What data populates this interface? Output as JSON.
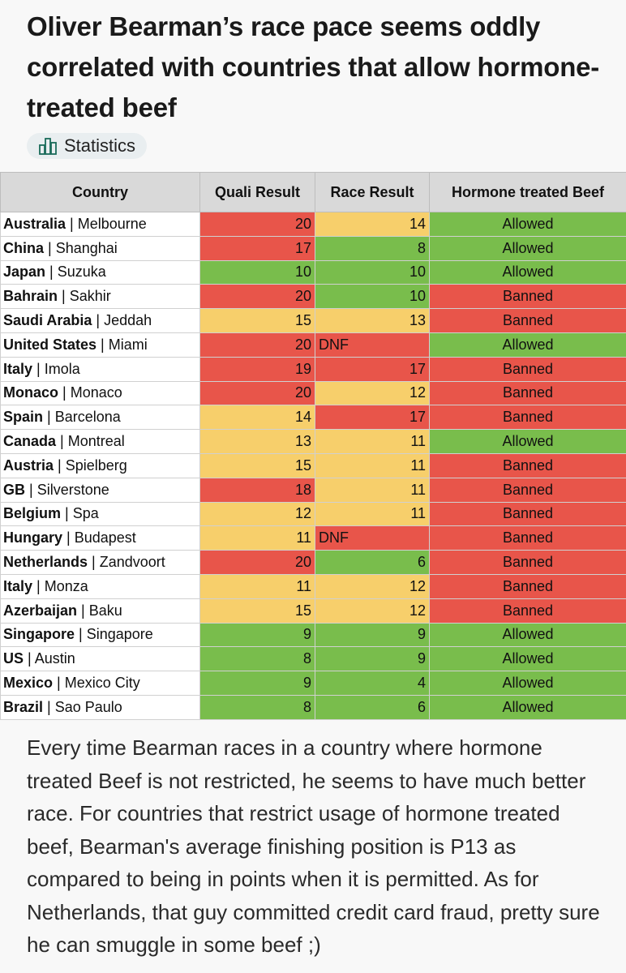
{
  "post": {
    "title": "Oliver Bearman’s race pace seems oddly correlated with countries that allow hormone-treated beef",
    "tag": {
      "label": "Statistics",
      "icon": "bar-chart-icon"
    },
    "body": "Every time Bearman races in a country where hormone treated Beef is not restricted, he seems to have much better race. For countries that restrict usage of hormone treated beef, Bearman's average finishing position is P13 as compared to being in points when it is permitted. As for Netherlands, that guy committed credit card fraud, pretty sure he can smuggle in some beef ;)"
  },
  "colors": {
    "red": "#e8554a",
    "yellow": "#f7cf6b",
    "green": "#79bd4c"
  },
  "table": {
    "headers": [
      "Country",
      "Quali Result",
      "Race Result",
      "Hormone treated Beef"
    ],
    "rows": [
      {
        "country": "Australia",
        "venue": "Melbourne",
        "quali": "20",
        "quali_color": "red",
        "race": "14",
        "race_color": "yellow",
        "beef": "Allowed",
        "beef_color": "green"
      },
      {
        "country": "China",
        "venue": "Shanghai",
        "quali": "17",
        "quali_color": "red",
        "race": "8",
        "race_color": "green",
        "beef": "Allowed",
        "beef_color": "green"
      },
      {
        "country": "Japan",
        "venue": "Suzuka",
        "quali": "10",
        "quali_color": "green",
        "race": "10",
        "race_color": "green",
        "beef": "Allowed",
        "beef_color": "green"
      },
      {
        "country": "Bahrain",
        "venue": "Sakhir",
        "quali": "20",
        "quali_color": "red",
        "race": "10",
        "race_color": "green",
        "beef": "Banned",
        "beef_color": "red"
      },
      {
        "country": "Saudi Arabia",
        "venue": "Jeddah",
        "quali": "15",
        "quali_color": "yellow",
        "race": "13",
        "race_color": "yellow",
        "beef": "Banned",
        "beef_color": "red"
      },
      {
        "country": "United States",
        "venue": "Miami",
        "quali": "20",
        "quali_color": "red",
        "race": "DNF",
        "race_color": "red",
        "beef": "Allowed",
        "beef_color": "green"
      },
      {
        "country": "Italy",
        "venue": "Imola",
        "quali": "19",
        "quali_color": "red",
        "race": "17",
        "race_color": "red",
        "beef": "Banned",
        "beef_color": "red"
      },
      {
        "country": "Monaco",
        "venue": "Monaco",
        "quali": "20",
        "quali_color": "red",
        "race": "12",
        "race_color": "yellow",
        "beef": "Banned",
        "beef_color": "red"
      },
      {
        "country": "Spain",
        "venue": "Barcelona",
        "quali": "14",
        "quali_color": "yellow",
        "race": "17",
        "race_color": "red",
        "beef": "Banned",
        "beef_color": "red"
      },
      {
        "country": "Canada",
        "venue": "Montreal",
        "quali": "13",
        "quali_color": "yellow",
        "race": "11",
        "race_color": "yellow",
        "beef": "Allowed",
        "beef_color": "green"
      },
      {
        "country": "Austria",
        "venue": "Spielberg",
        "quali": "15",
        "quali_color": "yellow",
        "race": "11",
        "race_color": "yellow",
        "beef": "Banned",
        "beef_color": "red"
      },
      {
        "country": "GB",
        "venue": "Silverstone",
        "quali": "18",
        "quali_color": "red",
        "race": "11",
        "race_color": "yellow",
        "beef": "Banned",
        "beef_color": "red"
      },
      {
        "country": "Belgium",
        "venue": "Spa",
        "quali": "12",
        "quali_color": "yellow",
        "race": "11",
        "race_color": "yellow",
        "beef": "Banned",
        "beef_color": "red"
      },
      {
        "country": "Hungary",
        "venue": "Budapest",
        "quali": "11",
        "quali_color": "yellow",
        "race": "DNF",
        "race_color": "red",
        "beef": "Banned",
        "beef_color": "red"
      },
      {
        "country": "Netherlands",
        "venue": "Zandvoort",
        "quali": "20",
        "quali_color": "red",
        "race": "6",
        "race_color": "green",
        "beef": "Banned",
        "beef_color": "red"
      },
      {
        "country": "Italy",
        "venue": "Monza",
        "quali": "11",
        "quali_color": "yellow",
        "race": "12",
        "race_color": "yellow",
        "beef": "Banned",
        "beef_color": "red"
      },
      {
        "country": "Azerbaijan",
        "venue": "Baku",
        "quali": "15",
        "quali_color": "yellow",
        "race": "12",
        "race_color": "yellow",
        "beef": "Banned",
        "beef_color": "red"
      },
      {
        "country": "Singapore",
        "venue": "Singapore",
        "quali": "9",
        "quali_color": "green",
        "race": "9",
        "race_color": "green",
        "beef": "Allowed",
        "beef_color": "green"
      },
      {
        "country": "US",
        "venue": "Austin",
        "quali": "8",
        "quali_color": "green",
        "race": "9",
        "race_color": "green",
        "beef": "Allowed",
        "beef_color": "green"
      },
      {
        "country": "Mexico",
        "venue": "Mexico City",
        "quali": "9",
        "quali_color": "green",
        "race": "4",
        "race_color": "green",
        "beef": "Allowed",
        "beef_color": "green"
      },
      {
        "country": "Brazil",
        "venue": "Sao Paulo",
        "quali": "8",
        "quali_color": "green",
        "race": "6",
        "race_color": "green",
        "beef": "Allowed",
        "beef_color": "green"
      }
    ]
  }
}
